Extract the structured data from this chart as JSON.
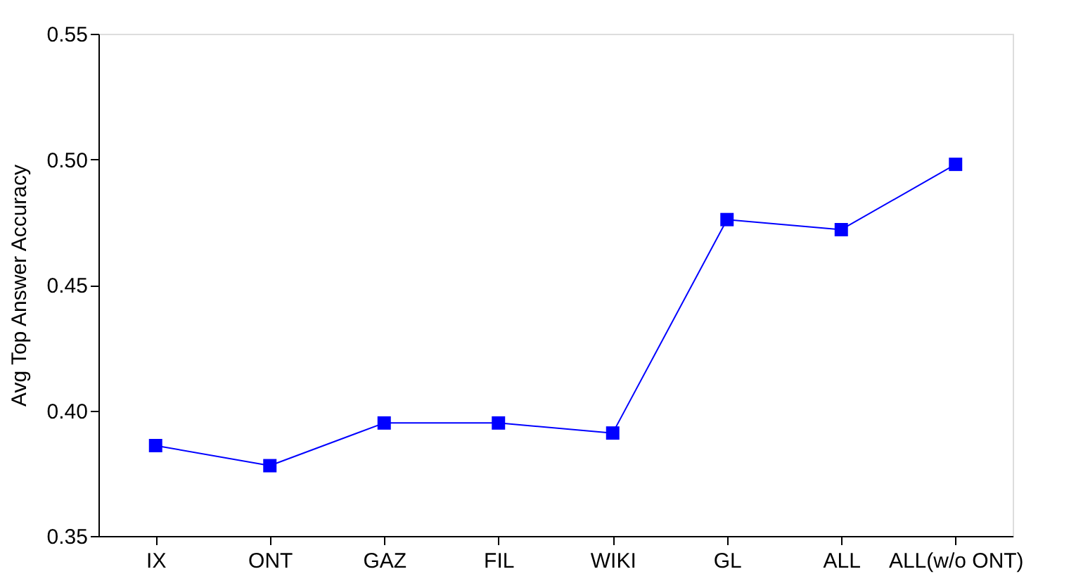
{
  "chart_data": {
    "type": "line",
    "ylabel": "Avg Top Answer Accuracy",
    "categories": [
      "IX",
      "ONT",
      "GAZ",
      "FIL",
      "WIKI",
      "GL",
      "ALL",
      "ALL(w/o ONT)"
    ],
    "series": [
      {
        "color": "#0000ff",
        "values": [
          0.386,
          0.378,
          0.395,
          0.395,
          0.391,
          0.476,
          0.472,
          0.498
        ]
      }
    ],
    "ylim": [
      0.35,
      0.55
    ],
    "yticks": [
      {
        "value": 0.35,
        "label": "0.35"
      },
      {
        "value": 0.4,
        "label": "0.40"
      },
      {
        "value": 0.45,
        "label": "0.45"
      },
      {
        "value": 0.5,
        "label": "0.50"
      },
      {
        "value": 0.55,
        "label": "0.55"
      }
    ],
    "marker": "square",
    "line_style": "solid",
    "grid": false
  }
}
